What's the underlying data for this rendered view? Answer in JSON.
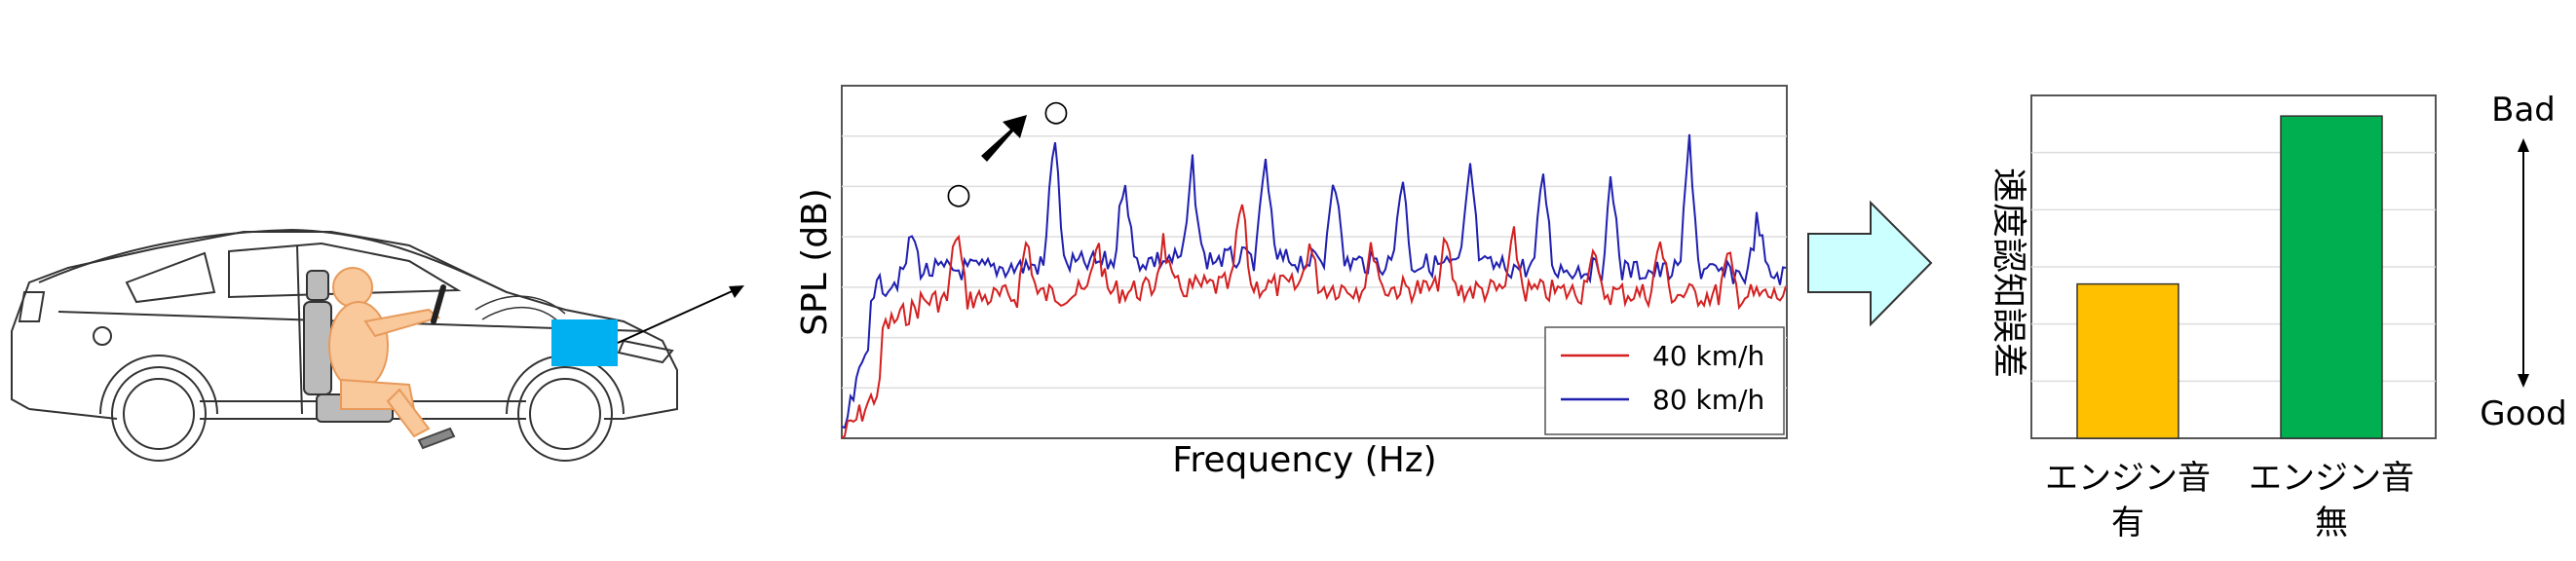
{
  "spectrum": {
    "ylabel": "SPL (dB)",
    "xlabel": "Frequency (Hz)",
    "markers": [
      "○",
      "○"
    ],
    "legend": [
      "40 km/h",
      "80 km/h"
    ]
  },
  "bar": {
    "ylabel": "速度認知誤差",
    "top_label": "Bad",
    "bottom_label": "Good",
    "categories": [
      "エンジン音有",
      "エンジン音無"
    ],
    "cat_lines": [
      [
        "エンジン音",
        "有"
      ],
      [
        "エンジン音",
        "無"
      ]
    ]
  },
  "chart_data": [
    {
      "type": "line",
      "title": "",
      "xlabel": "Frequency (Hz)",
      "ylabel": "SPL (dB)",
      "grid": true,
      "legend_position": "bottom-right",
      "series": [
        {
          "name": "40 km/h",
          "color": "#d42020"
        },
        {
          "name": "80 km/h",
          "color": "#1f1fb0"
        }
      ]
    },
    {
      "type": "bar",
      "title": "",
      "xlabel": "",
      "ylabel": "速度認知誤差",
      "categories": [
        "エンジン音有",
        "エンジン音無"
      ],
      "values": [
        0.45,
        0.94
      ],
      "ylim": [
        0,
        1
      ],
      "grid": true,
      "colors": [
        "#ffc000",
        "#00b050"
      ]
    }
  ],
  "colors": {
    "line_40": "#d42020",
    "line_80": "#1f1fb0",
    "bar_with": "#ffc000",
    "bar_without": "#00b050",
    "speaker": "#00b0f0",
    "arrow_fill": "#ccffff",
    "driver": "#f9c89b"
  }
}
